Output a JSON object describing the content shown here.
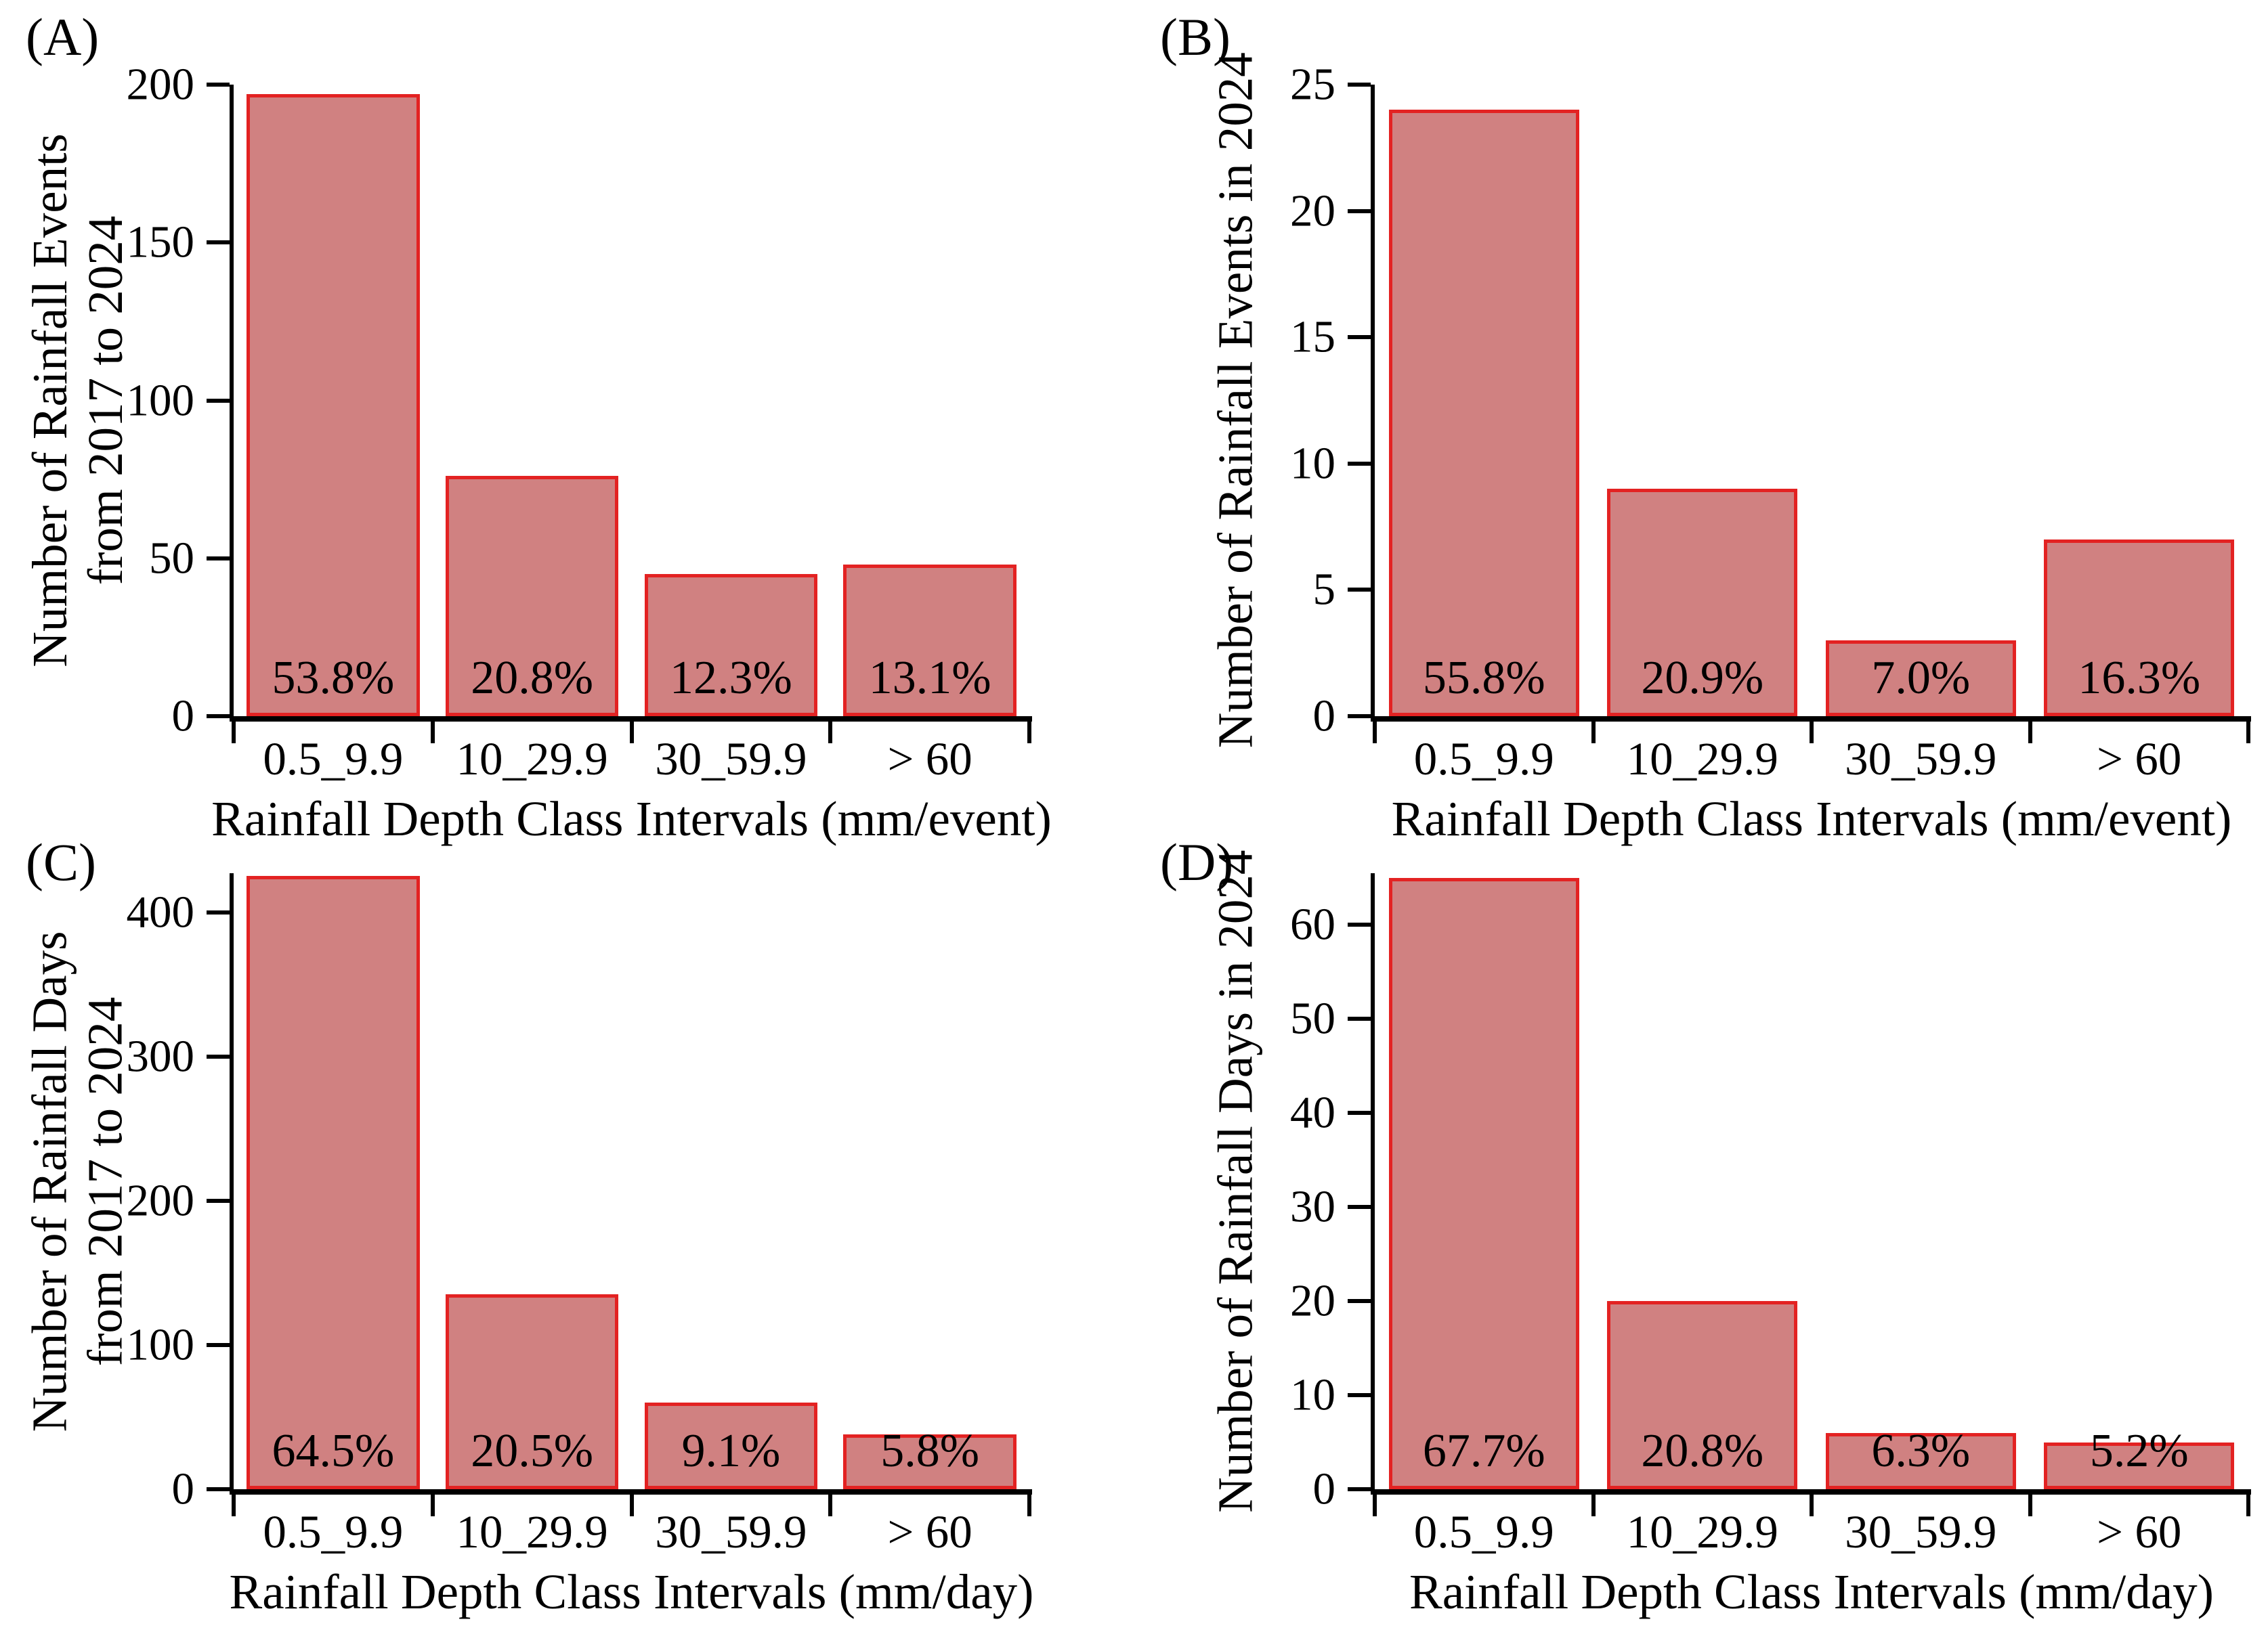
{
  "figure": {
    "background": "#ffffff",
    "bar_fill": "#d08181",
    "bar_border": "#e32222",
    "axis_color": "#000000",
    "text_color": "#000000"
  },
  "chart_data": [
    {
      "type": "bar",
      "panel_label": "(A)",
      "ylabel_lines": [
        "Number of Rainfall Events",
        "from 2017 to 2024"
      ],
      "xlabel": "Rainfall Depth Class Intervals (mm/event)",
      "categories": [
        "0.5_9.9",
        "10_29.9",
        "30_59.9",
        "> 60"
      ],
      "values": [
        197,
        76,
        45,
        48
      ],
      "bar_labels": [
        "53.8%",
        "20.8%",
        "12.3%",
        "13.1%"
      ],
      "yticks": [
        0,
        50,
        100,
        150,
        200
      ],
      "ylim": [
        0,
        200
      ],
      "grid": false,
      "legend": "none"
    },
    {
      "type": "bar",
      "panel_label": "(B)",
      "ylabel_lines": [
        "Number of Rainfall Events in 2024"
      ],
      "xlabel": "Rainfall Depth Class Intervals (mm/event)",
      "categories": [
        "0.5_9.9",
        "10_29.9",
        "30_59.9",
        "> 60"
      ],
      "values": [
        24,
        9,
        3,
        7
      ],
      "bar_labels": [
        "55.8%",
        "20.9%",
        "7.0%",
        "16.3%"
      ],
      "yticks": [
        0,
        5,
        10,
        15,
        20,
        25
      ],
      "ylim": [
        0,
        25
      ],
      "grid": false,
      "legend": "none"
    },
    {
      "type": "bar",
      "panel_label": "(C)",
      "ylabel_lines": [
        "Number of Rainfall Days",
        "from 2017 to 2024"
      ],
      "xlabel": "Rainfall Depth Class Intervals (mm/day)",
      "categories": [
        "0.5_9.9",
        "10_29.9",
        "30_59.9",
        "> 60"
      ],
      "values": [
        425,
        135,
        60,
        38
      ],
      "bar_labels": [
        "64.5%",
        "20.5%",
        "9.1%",
        "5.8%"
      ],
      "yticks": [
        0,
        100,
        200,
        300,
        400
      ],
      "ylim": [
        0,
        427
      ],
      "grid": false,
      "legend": "none"
    },
    {
      "type": "bar",
      "panel_label": "(D)",
      "ylabel_lines": [
        "Number of Rainfall Days in 2024"
      ],
      "xlabel": "Rainfall Depth Class Intervals (mm/day)",
      "categories": [
        "0.5_9.9",
        "10_29.9",
        "30_59.9",
        "> 60"
      ],
      "values": [
        65,
        20,
        6,
        5
      ],
      "bar_labels": [
        "67.7%",
        "20.8%",
        "6.3%",
        "5.2%"
      ],
      "yticks": [
        0,
        10,
        20,
        30,
        40,
        50,
        60
      ],
      "ylim": [
        0,
        65.5
      ],
      "grid": false,
      "legend": "none"
    }
  ]
}
